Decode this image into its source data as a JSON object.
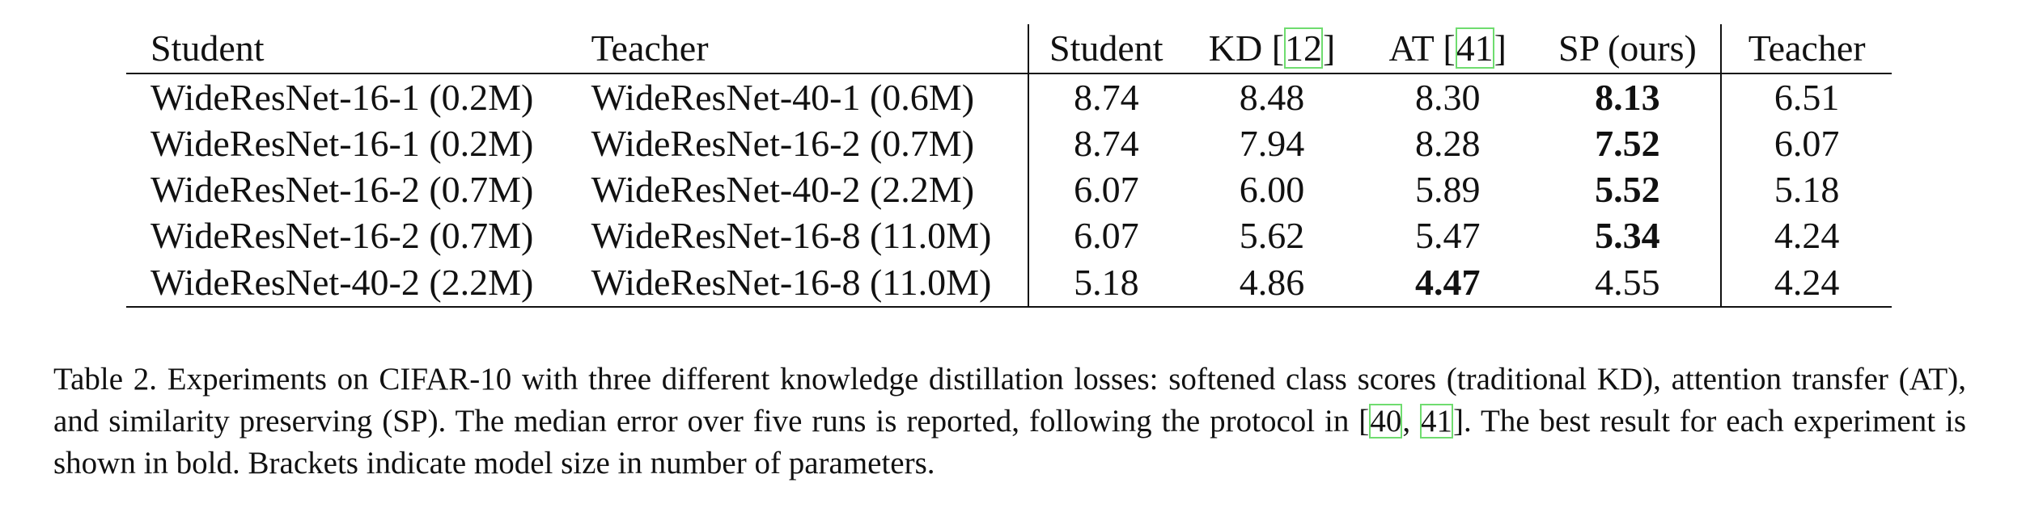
{
  "table": {
    "headers": {
      "student": "Student",
      "teacher": "Teacher",
      "student_err": "Student",
      "kd": "KD [",
      "kd_ref": "12",
      "at": "AT [",
      "at_ref": "41",
      "close": "]",
      "sp": "SP (ours)",
      "teacher_err": "Teacher"
    },
    "rows": [
      {
        "student": "WideResNet-16-1 (0.2M)",
        "teacher": "WideResNet-40-1 (0.6M)",
        "s": "8.74",
        "kd": "8.48",
        "at": "8.30",
        "sp": "8.13",
        "t": "6.51"
      },
      {
        "student": "WideResNet-16-1 (0.2M)",
        "teacher": "WideResNet-16-2 (0.7M)",
        "s": "8.74",
        "kd": "7.94",
        "at": "8.28",
        "sp": "7.52",
        "t": "6.07"
      },
      {
        "student": "WideResNet-16-2 (0.7M)",
        "teacher": "WideResNet-40-2 (2.2M)",
        "s": "6.07",
        "kd": "6.00",
        "at": "5.89",
        "sp": "5.52",
        "t": "5.18"
      },
      {
        "student": "WideResNet-16-2 (0.7M)",
        "teacher": "WideResNet-16-8 (11.0M)",
        "s": "6.07",
        "kd": "5.62",
        "at": "5.47",
        "sp": "5.34",
        "t": "4.24"
      },
      {
        "student": "WideResNet-40-2 (2.2M)",
        "teacher": "WideResNet-16-8 (11.0M)",
        "s": "5.18",
        "kd": "4.86",
        "at": "4.47",
        "sp": "4.55",
        "t": "4.24"
      }
    ]
  },
  "caption": {
    "part1": "Table 2. Experiments on CIFAR-10 with three different knowledge distillation losses: softened class scores (traditional KD), attention transfer (AT), and similarity preserving (SP). The median error over five runs is reported, following the protocol in [",
    "cite1": "40",
    "sep": ", ",
    "cite2": "41",
    "part2": "]. The best result for each experiment is shown in bold. Brackets indicate model size in number of parameters."
  }
}
